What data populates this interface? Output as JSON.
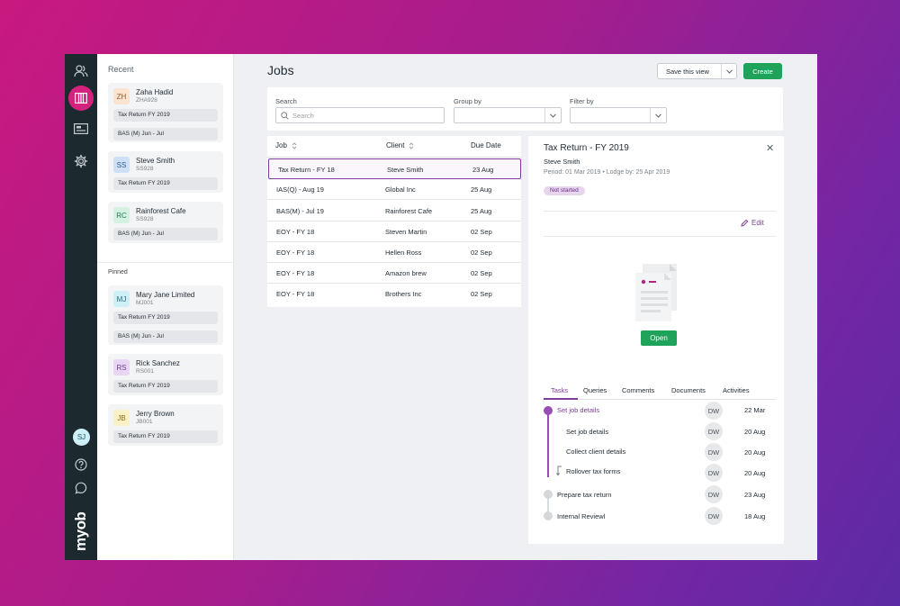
{
  "app": {
    "brand": "myob"
  },
  "rail": {
    "user_initials": "SJ",
    "icons": [
      "people-icon",
      "jobs-icon",
      "dashboard-icon",
      "gear-icon",
      "help-icon",
      "chat-icon"
    ]
  },
  "sidebar": {
    "recent_label": "Recent",
    "pinned_label": "Pinned",
    "recent": [
      {
        "initials": "ZH",
        "name": "Zaha Hadid",
        "code": "ZHA928",
        "av_bg": "#fbe3cf",
        "av_fg": "#9a5a2a",
        "chips": [
          "Tax Return FY 2019",
          "BAS (M) Jun - Jul"
        ]
      },
      {
        "initials": "SS",
        "name": "Steve Smith",
        "code": "SS928",
        "av_bg": "#cfe0f6",
        "av_fg": "#2d5a8e",
        "chips": [
          "Tax Return FY 2019"
        ]
      },
      {
        "initials": "RC",
        "name": "Rainforest Cafe",
        "code": "SS928",
        "av_bg": "#d4f1e1",
        "av_fg": "#2b7a4f",
        "chips": [
          "BAS (M) Jun - Jul"
        ]
      }
    ],
    "pinned": [
      {
        "initials": "MJ",
        "name": "Mary Jane Limited",
        "code": "MJ001",
        "av_bg": "#cdf0f6",
        "av_fg": "#237080",
        "chips": [
          "Tax Return FY 2019",
          "BAS (M) Jun - Jul"
        ]
      },
      {
        "initials": "RS",
        "name": "Rick Sanchez",
        "code": "RS001",
        "av_bg": "#e9d6f4",
        "av_fg": "#71408c",
        "chips": [
          "Tax Return FY 2019"
        ]
      },
      {
        "initials": "JB",
        "name": "Jerry Brown",
        "code": "JB001",
        "av_bg": "#fbf0c6",
        "av_fg": "#8a6d12",
        "chips": [
          "Tax Return FY 2019"
        ]
      }
    ]
  },
  "header": {
    "title": "Jobs",
    "save_view_label": "Save this view",
    "create_label": "Create"
  },
  "filters": {
    "search_label": "Search",
    "search_placeholder": "Search",
    "group_by_label": "Group by",
    "filter_by_label": "Filter by"
  },
  "table": {
    "columns": [
      "Job",
      "Client",
      "Due Date"
    ],
    "rows": [
      {
        "job": "Tax Return - FY 18",
        "client": "Steve Smith",
        "due": "23 Aug",
        "selected": true
      },
      {
        "job": "IAS(Q) - Aug 19",
        "client": "Global Inc",
        "due": "25 Aug"
      },
      {
        "job": "BAS(M) - Jul 19",
        "client": "Rainforest Cafe",
        "due": "25 Aug"
      },
      {
        "job": "EOY - FY 18",
        "client": "Steven Martin",
        "due": "02 Sep"
      },
      {
        "job": "EOY - FY 18",
        "client": "Hellen Ross",
        "due": "02 Sep"
      },
      {
        "job": "EOY - FY 18",
        "client": "Amazon brew",
        "due": "02 Sep"
      },
      {
        "job": "EOY - FY 18",
        "client": "Brothers Inc",
        "due": "02 Sep"
      }
    ]
  },
  "detail": {
    "title": "Tax Return - FY 2019",
    "client": "Steve Smith",
    "meta": "Period: 01 Mar 2019  •  Lodge by: 25 Apr 2019",
    "status": "Not started",
    "edit_label": "Edit",
    "open_label": "Open",
    "close_symbol": "✕",
    "tabs": [
      "Tasks",
      "Queries",
      "Comments",
      "Documents",
      "Activities"
    ],
    "active_tab": "Tasks",
    "tasks": [
      {
        "label": "Set job details",
        "assignee": "DW",
        "date": "22 Mar",
        "level": 0,
        "active": true
      },
      {
        "label": "Set job details",
        "assignee": "DW",
        "date": "20 Aug",
        "level": 1
      },
      {
        "label": "Collect client details",
        "assignee": "DW",
        "date": "20 Aug",
        "level": 1
      },
      {
        "label": "Rollover tax forms",
        "assignee": "DW",
        "date": "20 Aug",
        "level": 1
      },
      {
        "label": "Prepare tax return",
        "assignee": "DW",
        "date": "23 Aug",
        "level": 0
      },
      {
        "label": "Internal Reviewl",
        "assignee": "DW",
        "date": "18 Aug",
        "level": 0
      }
    ]
  },
  "colors": {
    "accent": "#7e3d98",
    "brand": "#d4237f",
    "primary_button": "#1fa25a",
    "rail": "#1c2a30"
  }
}
